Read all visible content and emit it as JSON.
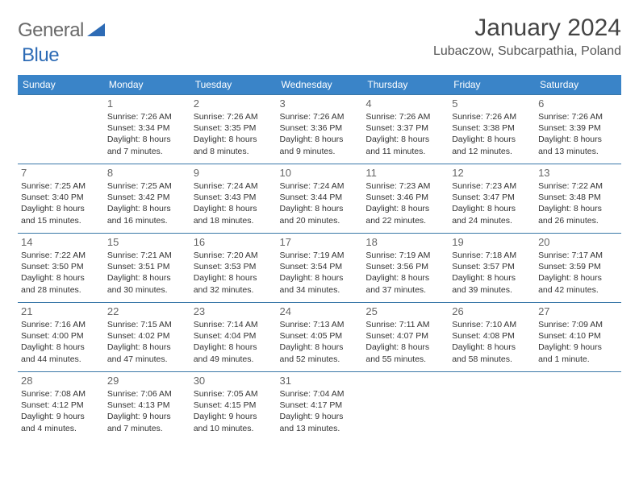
{
  "logo": {
    "text_gray": "General",
    "text_blue": "Blue"
  },
  "title": "January 2024",
  "location": "Lubaczow, Subcarpathia, Poland",
  "header_color": "#3a84c8",
  "border_color": "#3a78a8",
  "weekdays": [
    "Sunday",
    "Monday",
    "Tuesday",
    "Wednesday",
    "Thursday",
    "Friday",
    "Saturday"
  ],
  "weeks": [
    [
      null,
      {
        "n": "1",
        "sr": "Sunrise: 7:26 AM",
        "ss": "Sunset: 3:34 PM",
        "dl": "Daylight: 8 hours and 7 minutes."
      },
      {
        "n": "2",
        "sr": "Sunrise: 7:26 AM",
        "ss": "Sunset: 3:35 PM",
        "dl": "Daylight: 8 hours and 8 minutes."
      },
      {
        "n": "3",
        "sr": "Sunrise: 7:26 AM",
        "ss": "Sunset: 3:36 PM",
        "dl": "Daylight: 8 hours and 9 minutes."
      },
      {
        "n": "4",
        "sr": "Sunrise: 7:26 AM",
        "ss": "Sunset: 3:37 PM",
        "dl": "Daylight: 8 hours and 11 minutes."
      },
      {
        "n": "5",
        "sr": "Sunrise: 7:26 AM",
        "ss": "Sunset: 3:38 PM",
        "dl": "Daylight: 8 hours and 12 minutes."
      },
      {
        "n": "6",
        "sr": "Sunrise: 7:26 AM",
        "ss": "Sunset: 3:39 PM",
        "dl": "Daylight: 8 hours and 13 minutes."
      }
    ],
    [
      {
        "n": "7",
        "sr": "Sunrise: 7:25 AM",
        "ss": "Sunset: 3:40 PM",
        "dl": "Daylight: 8 hours and 15 minutes."
      },
      {
        "n": "8",
        "sr": "Sunrise: 7:25 AM",
        "ss": "Sunset: 3:42 PM",
        "dl": "Daylight: 8 hours and 16 minutes."
      },
      {
        "n": "9",
        "sr": "Sunrise: 7:24 AM",
        "ss": "Sunset: 3:43 PM",
        "dl": "Daylight: 8 hours and 18 minutes."
      },
      {
        "n": "10",
        "sr": "Sunrise: 7:24 AM",
        "ss": "Sunset: 3:44 PM",
        "dl": "Daylight: 8 hours and 20 minutes."
      },
      {
        "n": "11",
        "sr": "Sunrise: 7:23 AM",
        "ss": "Sunset: 3:46 PM",
        "dl": "Daylight: 8 hours and 22 minutes."
      },
      {
        "n": "12",
        "sr": "Sunrise: 7:23 AM",
        "ss": "Sunset: 3:47 PM",
        "dl": "Daylight: 8 hours and 24 minutes."
      },
      {
        "n": "13",
        "sr": "Sunrise: 7:22 AM",
        "ss": "Sunset: 3:48 PM",
        "dl": "Daylight: 8 hours and 26 minutes."
      }
    ],
    [
      {
        "n": "14",
        "sr": "Sunrise: 7:22 AM",
        "ss": "Sunset: 3:50 PM",
        "dl": "Daylight: 8 hours and 28 minutes."
      },
      {
        "n": "15",
        "sr": "Sunrise: 7:21 AM",
        "ss": "Sunset: 3:51 PM",
        "dl": "Daylight: 8 hours and 30 minutes."
      },
      {
        "n": "16",
        "sr": "Sunrise: 7:20 AM",
        "ss": "Sunset: 3:53 PM",
        "dl": "Daylight: 8 hours and 32 minutes."
      },
      {
        "n": "17",
        "sr": "Sunrise: 7:19 AM",
        "ss": "Sunset: 3:54 PM",
        "dl": "Daylight: 8 hours and 34 minutes."
      },
      {
        "n": "18",
        "sr": "Sunrise: 7:19 AM",
        "ss": "Sunset: 3:56 PM",
        "dl": "Daylight: 8 hours and 37 minutes."
      },
      {
        "n": "19",
        "sr": "Sunrise: 7:18 AM",
        "ss": "Sunset: 3:57 PM",
        "dl": "Daylight: 8 hours and 39 minutes."
      },
      {
        "n": "20",
        "sr": "Sunrise: 7:17 AM",
        "ss": "Sunset: 3:59 PM",
        "dl": "Daylight: 8 hours and 42 minutes."
      }
    ],
    [
      {
        "n": "21",
        "sr": "Sunrise: 7:16 AM",
        "ss": "Sunset: 4:00 PM",
        "dl": "Daylight: 8 hours and 44 minutes."
      },
      {
        "n": "22",
        "sr": "Sunrise: 7:15 AM",
        "ss": "Sunset: 4:02 PM",
        "dl": "Daylight: 8 hours and 47 minutes."
      },
      {
        "n": "23",
        "sr": "Sunrise: 7:14 AM",
        "ss": "Sunset: 4:04 PM",
        "dl": "Daylight: 8 hours and 49 minutes."
      },
      {
        "n": "24",
        "sr": "Sunrise: 7:13 AM",
        "ss": "Sunset: 4:05 PM",
        "dl": "Daylight: 8 hours and 52 minutes."
      },
      {
        "n": "25",
        "sr": "Sunrise: 7:11 AM",
        "ss": "Sunset: 4:07 PM",
        "dl": "Daylight: 8 hours and 55 minutes."
      },
      {
        "n": "26",
        "sr": "Sunrise: 7:10 AM",
        "ss": "Sunset: 4:08 PM",
        "dl": "Daylight: 8 hours and 58 minutes."
      },
      {
        "n": "27",
        "sr": "Sunrise: 7:09 AM",
        "ss": "Sunset: 4:10 PM",
        "dl": "Daylight: 9 hours and 1 minute."
      }
    ],
    [
      {
        "n": "28",
        "sr": "Sunrise: 7:08 AM",
        "ss": "Sunset: 4:12 PM",
        "dl": "Daylight: 9 hours and 4 minutes."
      },
      {
        "n": "29",
        "sr": "Sunrise: 7:06 AM",
        "ss": "Sunset: 4:13 PM",
        "dl": "Daylight: 9 hours and 7 minutes."
      },
      {
        "n": "30",
        "sr": "Sunrise: 7:05 AM",
        "ss": "Sunset: 4:15 PM",
        "dl": "Daylight: 9 hours and 10 minutes."
      },
      {
        "n": "31",
        "sr": "Sunrise: 7:04 AM",
        "ss": "Sunset: 4:17 PM",
        "dl": "Daylight: 9 hours and 13 minutes."
      },
      null,
      null,
      null
    ]
  ]
}
